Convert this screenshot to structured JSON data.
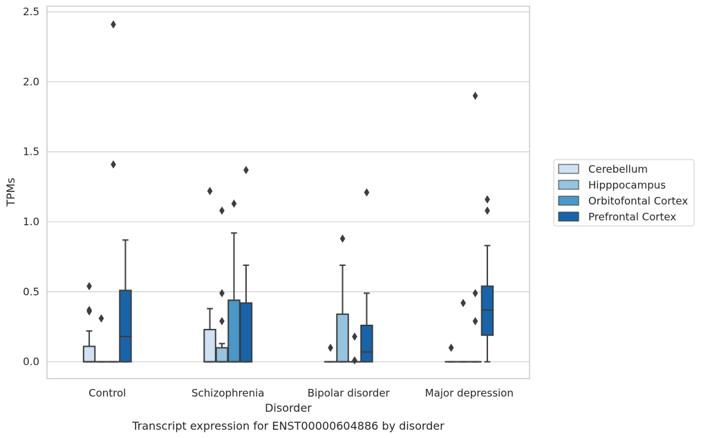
{
  "chart_data": {
    "type": "box",
    "caption": "Transcript expression for ENST00000604886 by disorder",
    "xlabel": "Disorder",
    "ylabel": "TPMs",
    "ylim": [
      -0.12,
      2.54
    ],
    "yticks": [
      0.0,
      0.5,
      1.0,
      1.5,
      2.0,
      2.5
    ],
    "ytick_labels": [
      "0.0",
      "0.5",
      "1.0",
      "1.5",
      "2.0",
      "2.5"
    ],
    "categories": [
      "Control",
      "Schizophrenia",
      "Bipolar disorder",
      "Major depression"
    ],
    "grid": "horizontal",
    "legend_position": "right",
    "series": [
      {
        "name": "Cerebellum",
        "color": "#d0e1f2",
        "boxes": [
          {
            "low": 0.0,
            "q1": 0.0,
            "median": 0.0,
            "q3": 0.11,
            "high": 0.22,
            "outliers": [
              0.36,
              0.37,
              0.54
            ]
          },
          {
            "low": 0.0,
            "q1": 0.0,
            "median": 0.0,
            "q3": 0.23,
            "high": 0.38,
            "outliers": [
              1.22
            ]
          },
          {
            "low": 0.0,
            "q1": 0.0,
            "median": 0.0,
            "q3": 0.0,
            "high": 0.0,
            "outliers": [
              0.1
            ]
          },
          {
            "low": 0.0,
            "q1": 0.0,
            "median": 0.0,
            "q3": 0.0,
            "high": 0.0,
            "outliers": [
              0.1
            ]
          }
        ]
      },
      {
        "name": "Hipppocampus",
        "color": "#94c4df",
        "boxes": [
          {
            "low": 0.0,
            "q1": 0.0,
            "median": 0.0,
            "q3": 0.0,
            "high": 0.0,
            "outliers": [
              0.31
            ]
          },
          {
            "low": 0.0,
            "q1": 0.0,
            "median": 0.0,
            "q3": 0.1,
            "high": 0.13,
            "outliers": [
              0.29,
              0.49,
              1.08
            ]
          },
          {
            "low": 0.0,
            "q1": 0.0,
            "median": 0.0,
            "q3": 0.34,
            "high": 0.69,
            "outliers": [
              0.88
            ]
          },
          {
            "low": 0.0,
            "q1": 0.0,
            "median": 0.0,
            "q3": 0.0,
            "high": 0.0,
            "outliers": [
              0.42
            ]
          }
        ]
      },
      {
        "name": "Orbitofontal Cortex",
        "color": "#4a98c9",
        "boxes": [
          {
            "low": 0.0,
            "q1": 0.0,
            "median": 0.0,
            "q3": 0.0,
            "high": 0.0,
            "outliers": [
              1.41,
              2.41
            ]
          },
          {
            "low": 0.0,
            "q1": 0.0,
            "median": 0.0,
            "q3": 0.44,
            "high": 0.92,
            "outliers": [
              1.13
            ]
          },
          {
            "low": 0.0,
            "q1": 0.0,
            "median": 0.0,
            "q3": 0.0,
            "high": 0.0,
            "outliers": [
              0.01,
              0.18
            ]
          },
          {
            "low": 0.0,
            "q1": 0.0,
            "median": 0.0,
            "q3": 0.0,
            "high": 0.0,
            "outliers": [
              0.29,
              0.49,
              1.9
            ]
          }
        ]
      },
      {
        "name": "Prefrontal Cortex",
        "color": "#1764ab",
        "boxes": [
          {
            "low": 0.0,
            "q1": 0.0,
            "median": 0.18,
            "q3": 0.51,
            "high": 0.87,
            "outliers": []
          },
          {
            "low": 0.0,
            "q1": 0.0,
            "median": 0.0,
            "q3": 0.42,
            "high": 0.69,
            "outliers": [
              1.37
            ]
          },
          {
            "low": 0.0,
            "q1": 0.0,
            "median": 0.07,
            "q3": 0.26,
            "high": 0.49,
            "outliers": [
              1.21
            ]
          },
          {
            "low": 0.0,
            "q1": 0.19,
            "median": 0.37,
            "q3": 0.54,
            "high": 0.83,
            "outliers": [
              1.08,
              1.16
            ]
          }
        ]
      }
    ]
  }
}
